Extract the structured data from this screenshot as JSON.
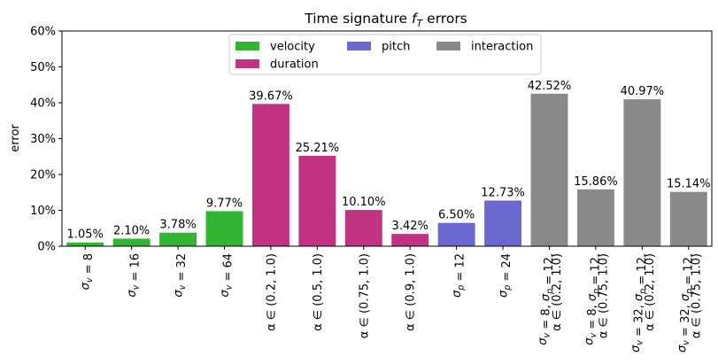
{
  "chart_data": {
    "type": "bar",
    "title": "Time signature f_T errors",
    "title_parts": [
      "Time signature ",
      "f",
      "T",
      " errors"
    ],
    "ylabel": "error",
    "xlabel": "",
    "ylim": [
      0,
      60
    ],
    "yticks": [
      "0%",
      "10%",
      "20%",
      "30%",
      "40%",
      "50%",
      "60%"
    ],
    "grid": false,
    "legend_position": "upper-center",
    "colors": {
      "velocity": "#33b533",
      "duration": "#c13283",
      "pitch": "#6b68cf",
      "interaction": "#8a8a8a"
    },
    "legend": [
      {
        "key": "velocity",
        "label": "velocity"
      },
      {
        "key": "pitch",
        "label": "pitch"
      },
      {
        "key": "interaction",
        "label": "interaction"
      },
      {
        "key": "duration",
        "label": "duration"
      }
    ],
    "categories": [
      {
        "lines": [
          "σ_v = 8"
        ],
        "group": "velocity"
      },
      {
        "lines": [
          "σ_v = 16"
        ],
        "group": "velocity"
      },
      {
        "lines": [
          "σ_v = 32"
        ],
        "group": "velocity"
      },
      {
        "lines": [
          "σ_v = 64"
        ],
        "group": "velocity"
      },
      {
        "lines": [
          "α ∈ (0.2, 1.0)"
        ],
        "group": "duration"
      },
      {
        "lines": [
          "α ∈ (0.5, 1.0)"
        ],
        "group": "duration"
      },
      {
        "lines": [
          "α ∈ (0.75, 1.0)"
        ],
        "group": "duration"
      },
      {
        "lines": [
          "α ∈ (0.9, 1.0)"
        ],
        "group": "duration"
      },
      {
        "lines": [
          "σ_p = 12"
        ],
        "group": "pitch"
      },
      {
        "lines": [
          "σ_p = 24"
        ],
        "group": "pitch"
      },
      {
        "lines": [
          "σ_v = 8, σ_p = 12,",
          "α ∈ (0.2, 1.0)"
        ],
        "group": "interaction"
      },
      {
        "lines": [
          "σ_v = 8, σ_p = 12,",
          "α ∈ (0.75, 1.0)"
        ],
        "group": "interaction"
      },
      {
        "lines": [
          "σ_v = 32, σ_p = 12,",
          "α ∈ (0.2, 1.0)"
        ],
        "group": "interaction"
      },
      {
        "lines": [
          "σ_v = 32, σ_p = 12,",
          "α ∈ (0.75, 1.0)"
        ],
        "group": "interaction"
      }
    ],
    "values": [
      1.05,
      2.1,
      3.78,
      9.77,
      39.67,
      25.21,
      10.1,
      3.42,
      6.5,
      12.73,
      42.52,
      15.86,
      40.97,
      15.14
    ],
    "value_labels": [
      "1.05%",
      "2.10%",
      "3.78%",
      "9.77%",
      "39.67%",
      "25.21%",
      "10.10%",
      "3.42%",
      "6.50%",
      "12.73%",
      "42.52%",
      "15.86%",
      "40.97%",
      "15.14%"
    ]
  }
}
